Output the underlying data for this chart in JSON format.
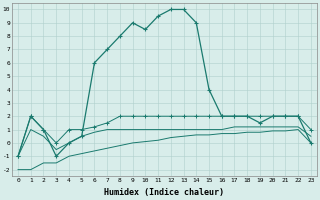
{
  "xlabel": "Humidex (Indice chaleur)",
  "x": [
    0,
    1,
    2,
    3,
    4,
    5,
    6,
    7,
    8,
    9,
    10,
    11,
    12,
    13,
    14,
    15,
    16,
    17,
    18,
    19,
    20,
    21,
    22,
    23
  ],
  "line_main": [
    -1,
    2,
    1,
    -1,
    0,
    0.5,
    6,
    7,
    8,
    9,
    8.5,
    9.5,
    10,
    10,
    9,
    4,
    2,
    2,
    2,
    1.5,
    2,
    2,
    2,
    0
  ],
  "line_upper": [
    -1,
    2,
    1,
    0,
    1,
    1,
    1.2,
    1.5,
    2,
    2,
    2,
    2,
    2,
    2,
    2,
    2,
    2,
    2,
    2,
    2,
    2,
    2,
    2,
    1
  ],
  "line_mid": [
    -1,
    1,
    0.5,
    -0.5,
    0,
    0.5,
    0.8,
    1,
    1,
    1,
    1,
    1,
    1,
    1,
    1,
    1,
    1,
    1.2,
    1.2,
    1.2,
    1.2,
    1.2,
    1.2,
    0.5
  ],
  "line_lower": [
    -2,
    -2,
    -1.5,
    -1.5,
    -1,
    -0.8,
    -0.6,
    -0.4,
    -0.2,
    0,
    0.1,
    0.2,
    0.4,
    0.5,
    0.6,
    0.6,
    0.7,
    0.7,
    0.8,
    0.8,
    0.9,
    0.9,
    1.0,
    0
  ],
  "ylim": [
    -2.5,
    10.5
  ],
  "xlim": [
    -0.5,
    23.5
  ],
  "yticks": [
    -2,
    -1,
    0,
    1,
    2,
    3,
    4,
    5,
    6,
    7,
    8,
    9,
    10
  ],
  "line_color": "#1a7a6e",
  "bg_color": "#d8edea",
  "grid_color": "#b0d0cc"
}
